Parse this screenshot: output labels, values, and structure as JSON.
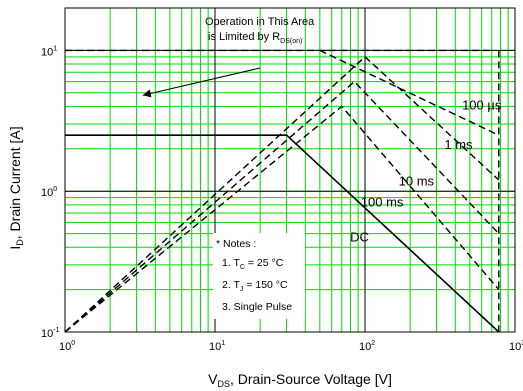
{
  "chart_data": {
    "type": "line",
    "title": "",
    "xlabel": {
      "main": "V",
      "sub": "DS",
      "rest": ", Drain-Source Voltage [V]"
    },
    "ylabel": {
      "main": "I",
      "sub": "D",
      "rest": ", Drain Current [A]"
    },
    "x_scale": "log",
    "y_scale": "log",
    "xlim": [
      1,
      1000
    ],
    "ylim": [
      0.1,
      20
    ],
    "grid": true,
    "grid_color": "#00dd00",
    "x_ticks": [
      {
        "base": "10",
        "exp": "0"
      },
      {
        "base": "10",
        "exp": "1"
      },
      {
        "base": "10",
        "exp": "2"
      },
      {
        "base": "10",
        "exp": "3"
      }
    ],
    "y_ticks": [
      {
        "value": 10,
        "base": "10",
        "exp": "1"
      },
      {
        "value": 1,
        "base": "10",
        "exp": "0"
      },
      {
        "value": 0.1,
        "base": "10",
        "exp": "-1"
      }
    ],
    "series": [
      {
        "name": "DC",
        "style": "solid",
        "points": [
          [
            1,
            2.5
          ],
          [
            30,
            2.5
          ],
          [
            780,
            0.1
          ]
        ]
      },
      {
        "name": "100 ms",
        "style": "dashed",
        "points": [
          [
            1,
            0.1
          ],
          [
            70,
            4.0
          ],
          [
            780,
            0.2
          ]
        ]
      },
      {
        "name": "10 ms",
        "style": "dashed",
        "points": [
          [
            1,
            0.1
          ],
          [
            85,
            6.0
          ],
          [
            780,
            0.5
          ]
        ]
      },
      {
        "name": "1 ms",
        "style": "dashed",
        "points": [
          [
            1,
            0.1
          ],
          [
            100,
            9.0
          ],
          [
            780,
            1.2
          ]
        ]
      },
      {
        "name": "100 µs",
        "style": "dashed",
        "points": [
          [
            50,
            10
          ],
          [
            780,
            2.5
          ]
        ]
      },
      {
        "name": "",
        "style": "dashed",
        "points": [
          [
            780,
            10
          ],
          [
            780,
            0.1
          ]
        ]
      },
      {
        "name": "",
        "style": "dashed",
        "points": [
          [
            1,
            10
          ],
          [
            700,
            10
          ]
        ]
      }
    ],
    "curve_labels": [
      {
        "text": "100 µs",
        "x": 600,
        "y": 3.8
      },
      {
        "text": "1 ms",
        "x": 420,
        "y": 2.0
      },
      {
        "text": "10 ms",
        "x": 220,
        "y": 1.1
      },
      {
        "text": "100 ms",
        "x": 130,
        "y": 0.78
      },
      {
        "text": "DC",
        "x": 92,
        "y": 0.44
      }
    ],
    "annotation": {
      "line1": "Operation in This Area",
      "line2": "is Limited by R",
      "line2_sub": "DS(on)",
      "arrow_from": [
        20,
        7.5
      ],
      "arrow_to": [
        3.3,
        4.8
      ]
    },
    "notes": {
      "title": "* Notes :",
      "items": [
        {
          "num": "1. T",
          "sub": "C",
          "rest": " = 25 °C"
        },
        {
          "num": "2. T",
          "sub": "J",
          "rest": " = 150 °C"
        },
        {
          "num": "3. Single Pulse",
          "sub": "",
          "rest": ""
        }
      ]
    }
  }
}
